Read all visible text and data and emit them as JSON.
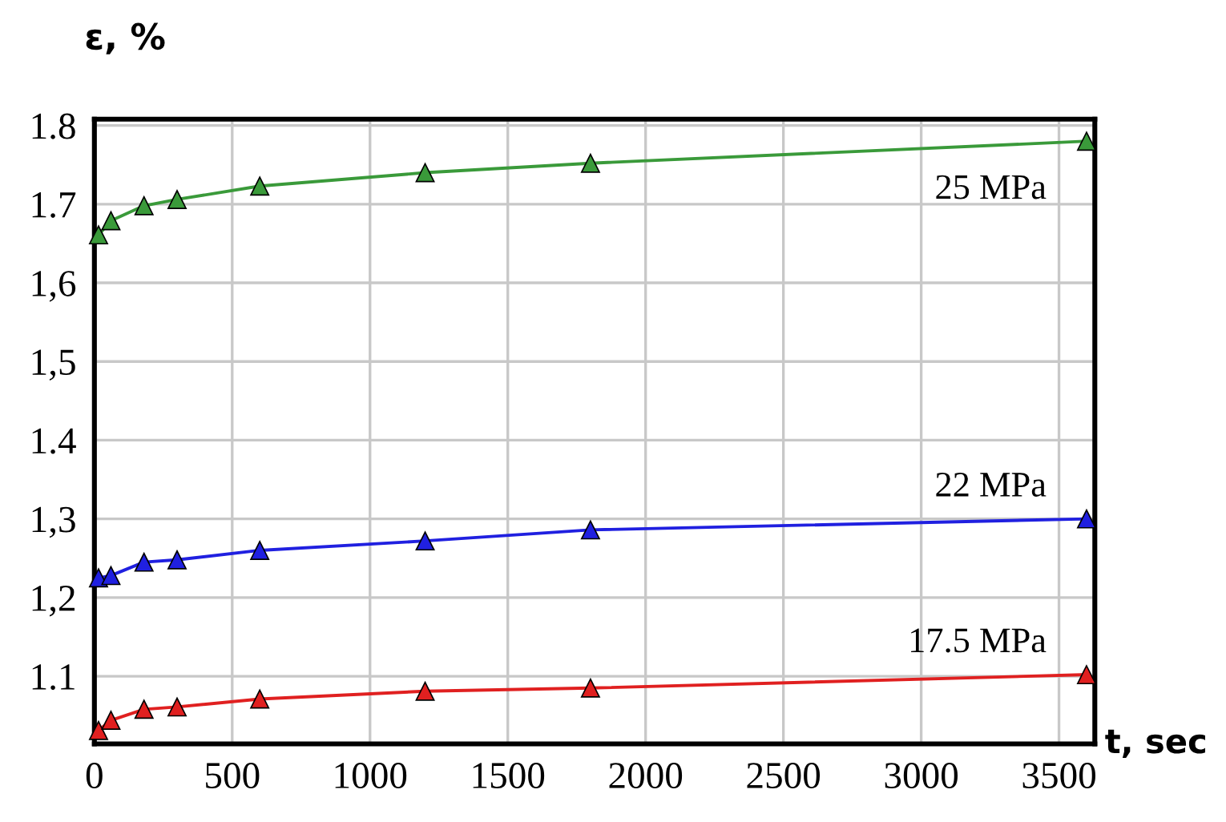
{
  "chart_data": {
    "type": "line",
    "xlabel": "t, sec",
    "ylabel": "ε, %",
    "x": [
      15,
      60,
      180,
      300,
      600,
      1200,
      1800,
      3600
    ],
    "series": [
      {
        "name": "25 MPa",
        "color": "#3a9a3a",
        "values": [
          1.661,
          1.679,
          1.698,
          1.706,
          1.723,
          1.74,
          1.752,
          1.78
        ]
      },
      {
        "name": "22 MPa",
        "color": "#2020e0",
        "values": [
          1.225,
          1.228,
          1.245,
          1.248,
          1.26,
          1.272,
          1.286,
          1.3
        ]
      },
      {
        "name": "17.5 MPa",
        "color": "#e02020",
        "values": [
          1.031,
          1.044,
          1.058,
          1.061,
          1.071,
          1.081,
          1.085,
          1.102
        ]
      }
    ],
    "xlim": [
      0,
      3630
    ],
    "xticks": [
      0,
      500,
      1000,
      1500,
      2000,
      2500,
      3000,
      3500
    ],
    "ylim": [
      1.014,
      1.808
    ],
    "yticks": [
      {
        "value": 1.1,
        "label": "1.1"
      },
      {
        "value": 1.2,
        "label": "1,2"
      },
      {
        "value": 1.3,
        "label": "1,3"
      },
      {
        "value": 1.4,
        "label": "1.4"
      },
      {
        "value": 1.5,
        "label": "1,5"
      },
      {
        "value": 1.6,
        "label": "1,6"
      },
      {
        "value": 1.7,
        "label": "1.7"
      },
      {
        "value": 1.8,
        "label": "1.8"
      }
    ],
    "grid": true,
    "legend": false,
    "marker": "triangle",
    "line_style": "solid"
  }
}
